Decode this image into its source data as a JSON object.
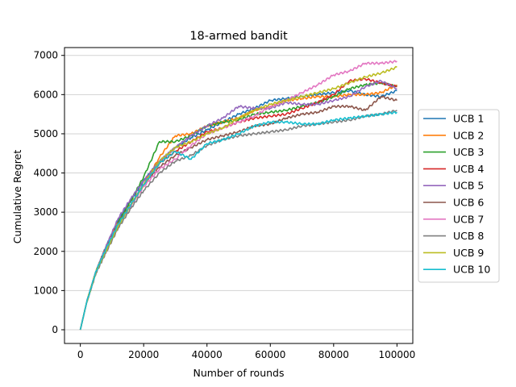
{
  "chart_data": {
    "type": "line",
    "title": "18-armed bandit",
    "xlabel": "Number of rounds",
    "ylabel": "Cumulative Regret",
    "xlim": [
      -5000,
      105000
    ],
    "ylim": [
      -350,
      7200
    ],
    "xticks": [
      0,
      20000,
      40000,
      60000,
      80000,
      100000
    ],
    "xtick_labels": [
      "0",
      "20000",
      "40000",
      "60000",
      "80000",
      "100000"
    ],
    "yticks": [
      0,
      1000,
      2000,
      3000,
      4000,
      5000,
      6000,
      7000
    ],
    "ytick_labels": [
      "0",
      "1000",
      "2000",
      "3000",
      "4000",
      "5000",
      "6000",
      "7000"
    ],
    "grid": "horizontal",
    "legend_position": "center-right-outside",
    "x": [
      0,
      2000,
      5000,
      8000,
      12000,
      16000,
      20000,
      25000,
      30000,
      35000,
      40000,
      45000,
      50000,
      55000,
      60000,
      65000,
      70000,
      75000,
      80000,
      85000,
      90000,
      95000,
      100000
    ],
    "series": [
      {
        "name": "UCB 1",
        "color": "#1f77b4",
        "values": [
          0,
          700,
          1500,
          2100,
          2800,
          3300,
          3800,
          4300,
          4650,
          4900,
          5100,
          5300,
          5500,
          5650,
          5850,
          5900,
          5950,
          6000,
          6050,
          6100,
          6000,
          5950,
          6100
        ]
      },
      {
        "name": "UCB 2",
        "color": "#ff7f0e",
        "values": [
          0,
          700,
          1500,
          2100,
          2750,
          3200,
          3700,
          4400,
          4950,
          5000,
          5200,
          5300,
          5400,
          5600,
          5700,
          5850,
          5900,
          5950,
          5950,
          6000,
          6000,
          6050,
          6250
        ]
      },
      {
        "name": "UCB 3",
        "color": "#2ca02c",
        "values": [
          0,
          700,
          1500,
          2050,
          2750,
          3300,
          3900,
          4800,
          4800,
          4950,
          5200,
          5300,
          5350,
          5500,
          5550,
          5600,
          5700,
          5800,
          5950,
          6150,
          6250,
          6300,
          6200
        ]
      },
      {
        "name": "UCB 4",
        "color": "#d62728",
        "values": [
          0,
          700,
          1500,
          2050,
          2700,
          3200,
          3700,
          4250,
          4550,
          4800,
          5050,
          5150,
          5300,
          5400,
          5450,
          5500,
          5650,
          5800,
          6000,
          6350,
          6400,
          6300,
          6200
        ]
      },
      {
        "name": "UCB 5",
        "color": "#9467bd",
        "values": [
          0,
          700,
          1500,
          2100,
          2850,
          3350,
          3800,
          4300,
          4650,
          4950,
          5200,
          5400,
          5700,
          5650,
          5650,
          5800,
          5750,
          5750,
          5850,
          5950,
          6200,
          6350,
          6150
        ]
      },
      {
        "name": "UCB 6",
        "color": "#8c564b",
        "values": [
          0,
          700,
          1500,
          2050,
          2700,
          3200,
          3700,
          4150,
          4450,
          4650,
          4850,
          4950,
          5050,
          5200,
          5250,
          5400,
          5500,
          5550,
          5700,
          5700,
          5600,
          5950,
          5850
        ]
      },
      {
        "name": "UCB 7",
        "color": "#e377c2",
        "values": [
          0,
          700,
          1500,
          2050,
          2700,
          3150,
          3650,
          4100,
          4350,
          4700,
          5000,
          5150,
          5300,
          5450,
          5700,
          5850,
          6050,
          6250,
          6500,
          6600,
          6800,
          6800,
          6850
        ]
      },
      {
        "name": "UCB 8",
        "color": "#7f7f7f",
        "values": [
          0,
          700,
          1450,
          1950,
          2600,
          3100,
          3550,
          4000,
          4300,
          4450,
          4700,
          4850,
          4950,
          5000,
          5050,
          5100,
          5200,
          5250,
          5300,
          5350,
          5450,
          5500,
          5600
        ]
      },
      {
        "name": "UCB 9",
        "color": "#bcbd22",
        "values": [
          0,
          700,
          1500,
          2000,
          2650,
          3200,
          3700,
          4300,
          4650,
          4800,
          5000,
          5150,
          5400,
          5600,
          5750,
          5850,
          5950,
          6050,
          6150,
          6300,
          6450,
          6550,
          6700
        ]
      },
      {
        "name": "UCB 10",
        "color": "#17becf",
        "values": [
          0,
          700,
          1500,
          2050,
          2700,
          3200,
          3700,
          4250,
          4550,
          4350,
          4750,
          4850,
          5000,
          5200,
          5300,
          5300,
          5250,
          5250,
          5350,
          5400,
          5450,
          5500,
          5550
        ]
      }
    ]
  }
}
